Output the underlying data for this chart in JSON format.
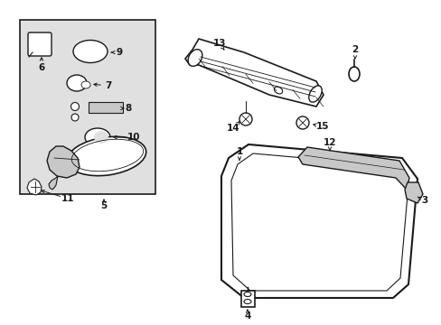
{
  "bg_color": "#ffffff",
  "line_color": "#1a1a1a",
  "gray_fill": "#c8c8c8",
  "box_bg": "#e0e0e0",
  "figsize": [
    4.89,
    3.6
  ],
  "dpi": 100
}
